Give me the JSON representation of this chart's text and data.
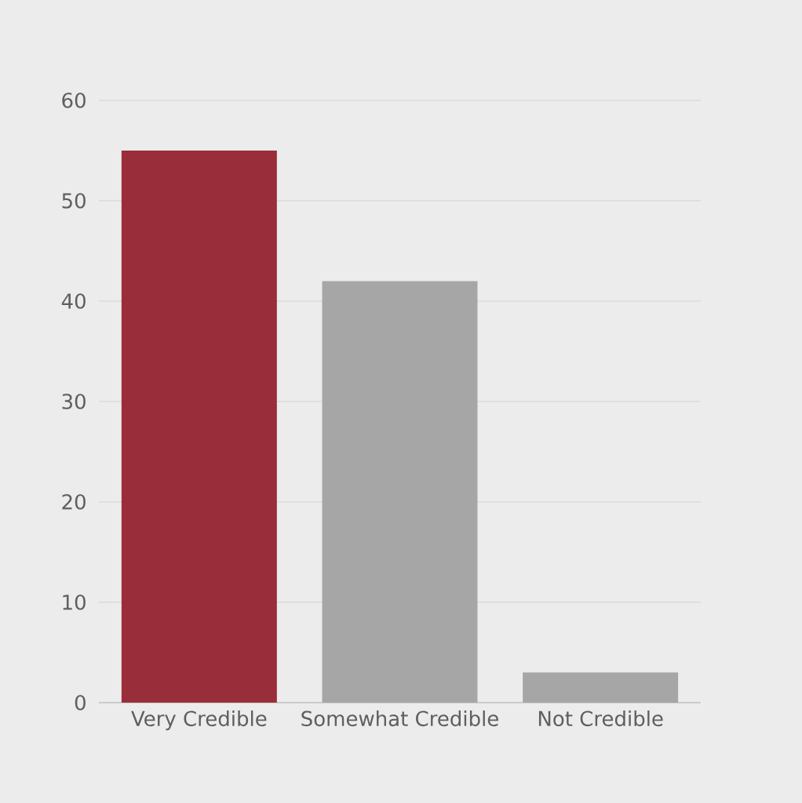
{
  "chart_data": {
    "type": "bar",
    "categories": [
      "Very Credible",
      "Somewhat Credible",
      "Not Credible"
    ],
    "values": [
      55,
      42,
      3
    ],
    "colors": [
      "#992e3a",
      "#a6a6a6",
      "#a6a6a6"
    ],
    "ylim": [
      0,
      60
    ],
    "yticks": [
      0,
      10,
      20,
      30,
      40,
      50,
      60
    ],
    "grid": "y"
  }
}
